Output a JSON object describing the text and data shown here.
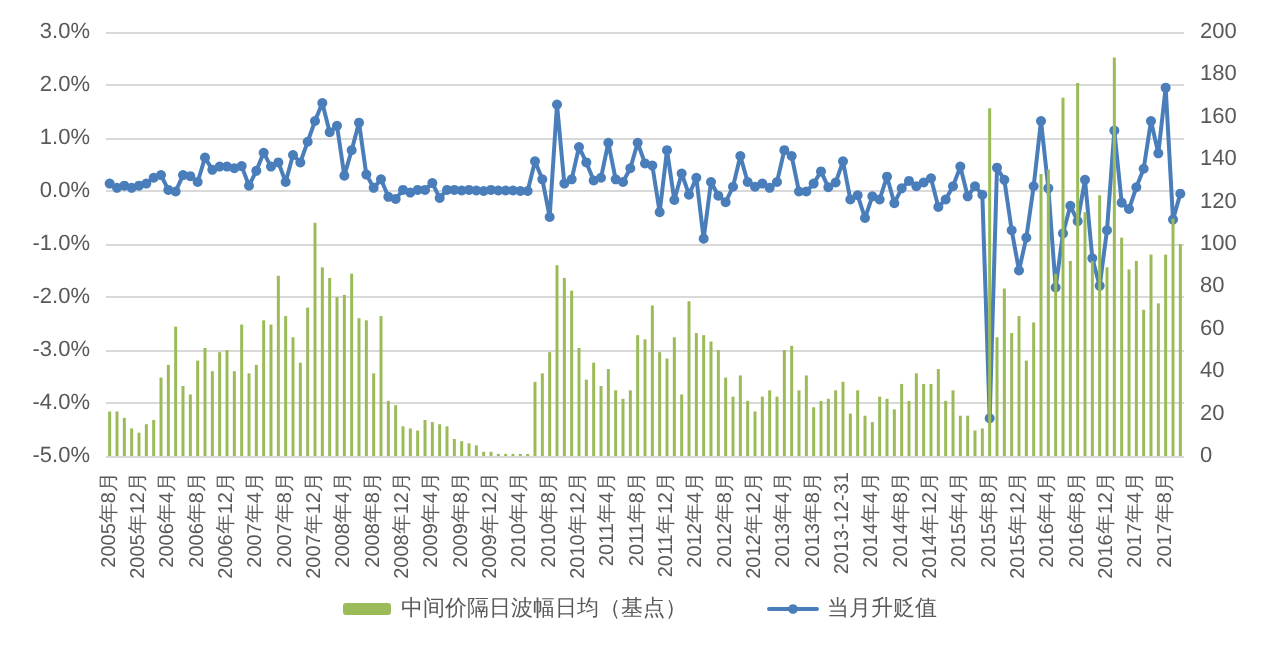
{
  "chart_data": {
    "type": "line",
    "categories": [
      "2005年8月",
      null,
      null,
      null,
      "2005年12月",
      null,
      null,
      null,
      "2006年4月",
      null,
      null,
      null,
      "2006年8月",
      null,
      null,
      null,
      "2006年12月",
      null,
      null,
      null,
      "2007年4月",
      null,
      null,
      null,
      "2007年8月",
      null,
      null,
      null,
      "2007年12月",
      null,
      null,
      null,
      "2008年4月",
      null,
      null,
      null,
      "2008年8月",
      null,
      null,
      null,
      "2008年12月",
      null,
      null,
      null,
      "2009年4月",
      null,
      null,
      null,
      "2009年8月",
      null,
      null,
      null,
      "2009年12月",
      null,
      null,
      null,
      "2010年4月",
      null,
      null,
      null,
      "2010年8月",
      null,
      null,
      null,
      "2010年12月",
      null,
      null,
      null,
      "2011年4月",
      null,
      null,
      null,
      "2011年8月",
      null,
      null,
      null,
      "2011年12月",
      null,
      null,
      null,
      "2012年4月",
      null,
      null,
      null,
      "2012年8月",
      null,
      null,
      null,
      "2012年12月",
      null,
      null,
      null,
      "2013年4月",
      null,
      null,
      null,
      "2013年8月",
      null,
      null,
      null,
      "2013-12-31",
      null,
      null,
      null,
      "2014年4月",
      null,
      null,
      null,
      "2014年8月",
      null,
      null,
      null,
      "2014年12月",
      null,
      null,
      null,
      "2015年4月",
      null,
      null,
      null,
      "2015年8月",
      null,
      null,
      null,
      "2015年12月",
      null,
      null,
      null,
      "2016年4月",
      null,
      null,
      null,
      "2016年8月",
      null,
      null,
      null,
      "2016年12月",
      null,
      null,
      null,
      "2017年4月",
      null,
      null,
      null,
      "2017年8月",
      null,
      null
    ],
    "series": [
      {
        "name": "中间价隔日波幅日均（基点）",
        "type": "bar",
        "axis": "y2",
        "color": "#9bbb59",
        "values": [
          21,
          21,
          18,
          13,
          11,
          15,
          17,
          37,
          43,
          61,
          33,
          29,
          45,
          51,
          40,
          49,
          50,
          40,
          62,
          39,
          43,
          64,
          62,
          85,
          66,
          56,
          44,
          70,
          110,
          89,
          84,
          75,
          76,
          86,
          65,
          64,
          39,
          66,
          26,
          24,
          14,
          13,
          12,
          17,
          16,
          15,
          14,
          8,
          7,
          6,
          5,
          2,
          2,
          1,
          1,
          1,
          1,
          1,
          35,
          39,
          49,
          90,
          84,
          78,
          51,
          36,
          44,
          33,
          41,
          31,
          27,
          31,
          57,
          55,
          71,
          49,
          46,
          56,
          29,
          73,
          58,
          57,
          54,
          50,
          37,
          28,
          38,
          26,
          21,
          28,
          31,
          28,
          50,
          52,
          31,
          38,
          23,
          26,
          27,
          31,
          35,
          20,
          31,
          19,
          16,
          28,
          27,
          22,
          34,
          26,
          39,
          34,
          34,
          41,
          26,
          31,
          19,
          19,
          12,
          13,
          164,
          56,
          79,
          58,
          66,
          45,
          63,
          133,
          135,
          86,
          169,
          92,
          176,
          115,
          92,
          123,
          89,
          188,
          103,
          88,
          92,
          69,
          95,
          72,
          95,
          112,
          100
        ]
      },
      {
        "name": "当月升贬值",
        "color": "#4a7ebb",
        "values": [
          0.14,
          0.06,
          0.1,
          0.06,
          0.1,
          0.14,
          0.25,
          0.3,
          0.02,
          -0.01,
          0.3,
          0.28,
          0.17,
          0.63,
          0.4,
          0.46,
          0.46,
          0.43,
          0.47,
          0.1,
          0.38,
          0.72,
          0.46,
          0.54,
          0.17,
          0.68,
          0.54,
          0.93,
          1.32,
          1.66,
          1.11,
          1.23,
          0.29,
          0.77,
          1.29,
          0.31,
          0.06,
          0.22,
          -0.11,
          -0.15,
          0.02,
          -0.03,
          0.02,
          0.02,
          0.15,
          -0.13,
          0.02,
          0.02,
          0.01,
          0.02,
          0.01,
          0,
          0.02,
          0.01,
          0.01,
          0.01,
          0,
          0,
          0.56,
          0.22,
          -0.49,
          1.63,
          0.14,
          0.22,
          0.83,
          0.54,
          0.2,
          0.25,
          0.91,
          0.22,
          0.17,
          0.43,
          0.91,
          0.52,
          0.48,
          -0.4,
          0.77,
          -0.17,
          0.33,
          -0.07,
          0.25,
          -0.9,
          0.17,
          -0.09,
          -0.21,
          0.08,
          0.66,
          0.17,
          0.08,
          0.14,
          0.06,
          0.17,
          0.77,
          0.66,
          -0.01,
          -0.01,
          0.14,
          0.37,
          0.07,
          0.16,
          0.56,
          -0.16,
          -0.08,
          -0.51,
          -0.1,
          -0.16,
          0.27,
          -0.23,
          0.05,
          0.19,
          0.09,
          0.16,
          0.24,
          -0.3,
          -0.16,
          0.09,
          0.46,
          -0.1,
          0.09,
          -0.07,
          -4.29,
          0.44,
          0.21,
          -0.74,
          -1.5,
          -0.88,
          0.09,
          1.32,
          0.05,
          -1.82,
          -0.8,
          -0.28,
          -0.57,
          0.21,
          -1.27,
          -1.79,
          -0.74,
          1.14,
          -0.22,
          -0.34,
          0.07,
          0.42,
          1.32,
          0.71,
          1.95,
          -0.54,
          -0.05
        ]
      }
    ],
    "ylim": [
      -5,
      3
    ],
    "yticks": [
      {
        "value": -5,
        "label": "-5.0%"
      },
      {
        "value": -4,
        "label": "-4.0%"
      },
      {
        "value": -3,
        "label": "-3.0%"
      },
      {
        "value": -2,
        "label": "-2.0%"
      },
      {
        "value": -1,
        "label": "-1.0%"
      },
      {
        "value": 0,
        "label": "0.0%"
      },
      {
        "value": 1,
        "label": "1.0%"
      },
      {
        "value": 2,
        "label": "2.0%"
      },
      {
        "value": 3,
        "label": "3.0%"
      }
    ],
    "y2lim": [
      0,
      200
    ],
    "y2ticks": [
      0,
      20,
      40,
      60,
      80,
      100,
      120,
      140,
      160,
      180,
      200
    ],
    "grid": "y",
    "legend": "bottom",
    "marker": "circle",
    "line_style": "solid"
  }
}
